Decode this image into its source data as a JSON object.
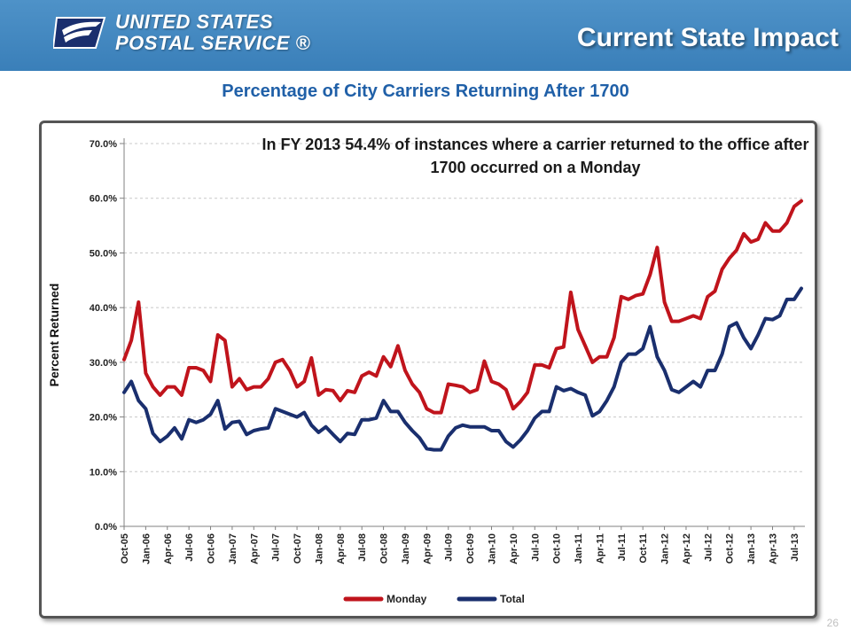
{
  "header": {
    "logo_line1": "UNITED STATES",
    "logo_line2": "POSTAL SERVICE ®",
    "slide_title": "Current State Impact",
    "bar_color": "#4a8cc4"
  },
  "page_number": "26",
  "chart_data": {
    "type": "line",
    "title": "Percentage of City Carriers Returning After 1700",
    "annotation": "In FY 2013 54.4% of instances where a carrier returned to the office after 1700 occurred on a Monday",
    "ylabel": "Percent Returned",
    "xlabel": "",
    "ylim": [
      0,
      70
    ],
    "y_ticks": [
      "0.0%",
      "10.0%",
      "20.0%",
      "30.0%",
      "40.0%",
      "50.0%",
      "60.0%",
      "70.0%"
    ],
    "x_tick_labels": [
      "Oct-05",
      "Jan-06",
      "Apr-06",
      "Jul-06",
      "Oct-06",
      "Jan-07",
      "Apr-07",
      "Jul-07",
      "Oct-07",
      "Jan-08",
      "Apr-08",
      "Jul-08",
      "Oct-08",
      "Jan-09",
      "Apr-09",
      "Jul-09",
      "Oct-09",
      "Jan-10",
      "Apr-10",
      "Jul-10",
      "Oct-10",
      "Jan-11",
      "Apr-11",
      "Jul-11",
      "Oct-11",
      "Jan-12",
      "Apr-12",
      "Jul-12",
      "Oct-12",
      "Jan-13",
      "Apr-13",
      "Jul-13"
    ],
    "x_start": "Oct-05",
    "x_interval": "month",
    "grid": "horizontal dashed",
    "legend_position": "bottom",
    "series": [
      {
        "name": "Monday",
        "color": "#c0141c",
        "values": [
          30.5,
          34.0,
          41.0,
          28.0,
          25.5,
          24.0,
          25.5,
          25.5,
          24.0,
          29.0,
          29.0,
          28.5,
          26.5,
          35.0,
          34.0,
          25.5,
          27.0,
          25.0,
          25.5,
          25.5,
          27.0,
          30.0,
          30.5,
          28.5,
          25.5,
          26.5,
          30.8,
          24.0,
          25.0,
          24.8,
          23.0,
          24.8,
          24.5,
          27.5,
          28.2,
          27.5,
          31.0,
          29.2,
          33.0,
          28.5,
          26.0,
          24.5,
          21.5,
          20.8,
          20.8,
          26.0,
          25.8,
          25.5,
          24.5,
          25.0,
          30.2,
          26.5,
          26.0,
          25.0,
          21.5,
          22.8,
          24.5,
          29.5,
          29.5,
          29.0,
          32.5,
          32.8,
          42.8,
          36.0,
          33.0,
          30.0,
          31.0,
          31.0,
          34.5,
          42.0,
          41.5,
          42.2,
          42.5,
          46.0,
          51.0,
          41.0,
          37.5,
          37.5,
          38.0,
          38.5,
          38.0,
          42.0,
          43.0,
          47.0,
          49.0,
          50.5,
          53.5,
          52.0,
          52.5,
          55.5,
          54.0,
          54.0,
          55.5,
          58.5,
          59.5
        ]
      },
      {
        "name": "Total",
        "color": "#1a2f6e",
        "values": [
          24.5,
          26.5,
          23.0,
          21.5,
          17.0,
          15.5,
          16.5,
          18.0,
          16.0,
          19.5,
          19.0,
          19.5,
          20.5,
          23.0,
          17.8,
          19.0,
          19.2,
          16.8,
          17.5,
          17.8,
          18.0,
          21.5,
          21.0,
          20.5,
          20.0,
          20.8,
          18.5,
          17.2,
          18.2,
          16.8,
          15.5,
          17.0,
          16.8,
          19.5,
          19.5,
          19.8,
          23.0,
          21.0,
          21.0,
          19.0,
          17.5,
          16.2,
          14.2,
          14.0,
          14.0,
          16.5,
          18.0,
          18.5,
          18.2,
          18.2,
          18.2,
          17.5,
          17.5,
          15.5,
          14.5,
          15.8,
          17.5,
          19.8,
          21.0,
          21.0,
          25.5,
          24.8,
          25.2,
          24.5,
          24.0,
          20.2,
          21.0,
          23.0,
          25.5,
          30.0,
          31.5,
          31.5,
          32.5,
          36.5,
          31.0,
          28.5,
          25.0,
          24.5,
          25.5,
          26.5,
          25.5,
          28.5,
          28.5,
          31.5,
          36.5,
          37.2,
          34.5,
          32.5,
          35.0,
          38.0,
          37.8,
          38.5,
          41.5,
          41.5,
          43.5
        ]
      }
    ]
  }
}
